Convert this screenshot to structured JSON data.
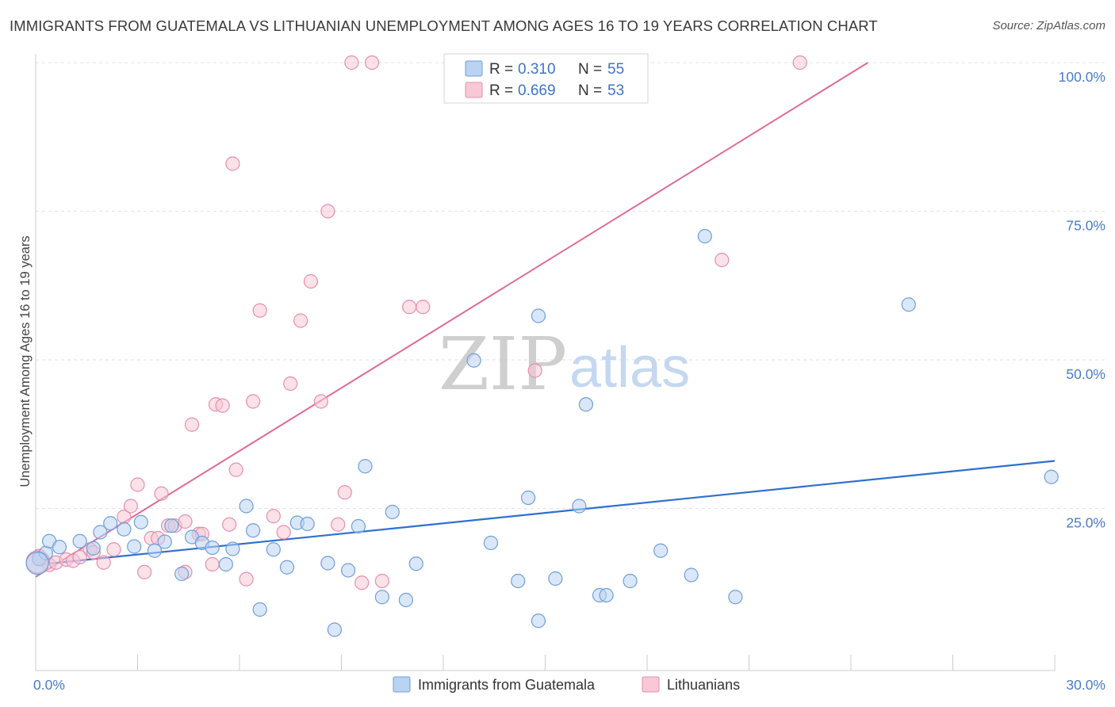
{
  "title": "IMMIGRANTS FROM GUATEMALA VS LITHUANIAN UNEMPLOYMENT AMONG AGES 16 TO 19 YEARS CORRELATION CHART",
  "source": "Source: ZipAtlas.com",
  "watermark": {
    "zip": "ZIP",
    "atlas": "atlas"
  },
  "colors": {
    "blue_fill": "#b9d3f3",
    "blue_stroke": "#6f9ed8",
    "blue_line": "#2f6fcf",
    "pink_fill": "#f8c8d6",
    "pink_stroke": "#e58fab",
    "pink_line": "#e06a94",
    "tick_text": "#4a7cc9"
  },
  "legend": {
    "r_label": "R =",
    "n_label": "N =",
    "rows": [
      {
        "r": "0.310",
        "n": "55"
      },
      {
        "r": "0.669",
        "n": "53"
      }
    ]
  },
  "bottom_legend": [
    "Immigrants from Guatemala",
    "Lithuanians"
  ],
  "chart_data": {
    "type": "scatter",
    "title": "IMMIGRANTS FROM GUATEMALA VS LITHUANIAN UNEMPLOYMENT AMONG AGES 16 TO 19 YEARS CORRELATION CHART",
    "xlabel": "",
    "ylabel": "Unemployment Among Ages 16 to 19 years",
    "xlim": [
      0,
      30
    ],
    "ylim": [
      0,
      100
    ],
    "x_tick_labels": [
      "0.0%",
      "30.0%"
    ],
    "y_ticks": [
      25,
      50,
      75,
      100
    ],
    "y_tick_labels": [
      "25.0%",
      "50.0%",
      "75.0%",
      "100.0%"
    ],
    "grid": true,
    "legend_position": "top-center",
    "series": [
      {
        "name": "Immigrants from Guatemala",
        "r": 0.31,
        "n": 55,
        "trend": {
          "x0": 0,
          "y0": 15.5,
          "x1": 30,
          "y1": 33
        },
        "points": [
          [
            0.1,
            16.5
          ],
          [
            0.3,
            17.5
          ],
          [
            0.4,
            19.5
          ],
          [
            0.7,
            18.5
          ],
          [
            1.3,
            19.5
          ],
          [
            1.7,
            18.3
          ],
          [
            1.9,
            21.0
          ],
          [
            2.2,
            22.5
          ],
          [
            2.6,
            21.5
          ],
          [
            2.9,
            18.6
          ],
          [
            3.1,
            22.7
          ],
          [
            3.5,
            17.9
          ],
          [
            3.8,
            19.4
          ],
          [
            4.0,
            22.1
          ],
          [
            4.3,
            14.0
          ],
          [
            4.6,
            20.2
          ],
          [
            4.9,
            19.2
          ],
          [
            5.2,
            18.4
          ],
          [
            5.6,
            15.6
          ],
          [
            5.8,
            18.2
          ],
          [
            6.2,
            25.4
          ],
          [
            6.4,
            21.3
          ],
          [
            6.6,
            8.0
          ],
          [
            7.0,
            18.1
          ],
          [
            7.4,
            15.1
          ],
          [
            7.7,
            22.6
          ],
          [
            8.0,
            22.4
          ],
          [
            8.6,
            15.8
          ],
          [
            8.8,
            4.6
          ],
          [
            9.2,
            14.6
          ],
          [
            9.5,
            22.0
          ],
          [
            9.7,
            32.1
          ],
          [
            10.2,
            10.1
          ],
          [
            10.5,
            24.4
          ],
          [
            10.9,
            9.6
          ],
          [
            11.2,
            15.7
          ],
          [
            12.9,
            49.9
          ],
          [
            13.4,
            19.2
          ],
          [
            14.2,
            12.8
          ],
          [
            14.5,
            26.8
          ],
          [
            14.8,
            57.4
          ],
          [
            14.8,
            6.1
          ],
          [
            15.3,
            13.2
          ],
          [
            16.0,
            25.4
          ],
          [
            16.2,
            42.5
          ],
          [
            16.6,
            10.4
          ],
          [
            16.8,
            10.4
          ],
          [
            17.5,
            12.8
          ],
          [
            18.4,
            17.9
          ],
          [
            19.3,
            13.8
          ],
          [
            19.7,
            70.8
          ],
          [
            20.6,
            10.1
          ],
          [
            25.7,
            59.3
          ],
          [
            29.9,
            30.3
          ],
          [
            0.05,
            15.8
          ]
        ]
      },
      {
        "name": "Lithuanians",
        "r": 0.669,
        "n": 53,
        "trend": {
          "x0": 0,
          "y0": 13.5,
          "x1": 24.5,
          "y1": 100
        },
        "points": [
          [
            0.1,
            17.0
          ],
          [
            0.2,
            16.4
          ],
          [
            0.4,
            15.5
          ],
          [
            0.6,
            15.9
          ],
          [
            0.9,
            16.4
          ],
          [
            1.1,
            16.2
          ],
          [
            1.3,
            16.8
          ],
          [
            1.6,
            18.1
          ],
          [
            1.7,
            17.6
          ],
          [
            2.0,
            15.9
          ],
          [
            2.3,
            18.1
          ],
          [
            2.6,
            23.6
          ],
          [
            2.8,
            25.4
          ],
          [
            3.0,
            29.0
          ],
          [
            3.2,
            14.3
          ],
          [
            3.4,
            20.0
          ],
          [
            3.6,
            20.0
          ],
          [
            3.7,
            27.5
          ],
          [
            3.9,
            22.1
          ],
          [
            4.1,
            22.1
          ],
          [
            4.4,
            22.8
          ],
          [
            4.4,
            14.3
          ],
          [
            4.6,
            39.1
          ],
          [
            4.8,
            20.7
          ],
          [
            4.9,
            20.7
          ],
          [
            5.2,
            15.6
          ],
          [
            5.3,
            42.5
          ],
          [
            5.5,
            42.3
          ],
          [
            5.7,
            22.3
          ],
          [
            5.8,
            83.0
          ],
          [
            5.9,
            31.5
          ],
          [
            6.2,
            13.1
          ],
          [
            6.4,
            43.0
          ],
          [
            6.6,
            58.3
          ],
          [
            7.0,
            23.7
          ],
          [
            7.3,
            21.0
          ],
          [
            7.5,
            46.0
          ],
          [
            7.8,
            56.6
          ],
          [
            8.1,
            63.2
          ],
          [
            8.4,
            43.0
          ],
          [
            8.6,
            75.0
          ],
          [
            8.9,
            22.3
          ],
          [
            9.1,
            27.7
          ],
          [
            9.3,
            100.0
          ],
          [
            9.6,
            12.5
          ],
          [
            9.9,
            100.0
          ],
          [
            10.2,
            12.8
          ],
          [
            11.0,
            58.9
          ],
          [
            11.4,
            58.9
          ],
          [
            14.7,
            48.2
          ],
          [
            20.2,
            66.8
          ],
          [
            22.5,
            100.0
          ],
          [
            0.05,
            16.0
          ]
        ]
      }
    ]
  }
}
